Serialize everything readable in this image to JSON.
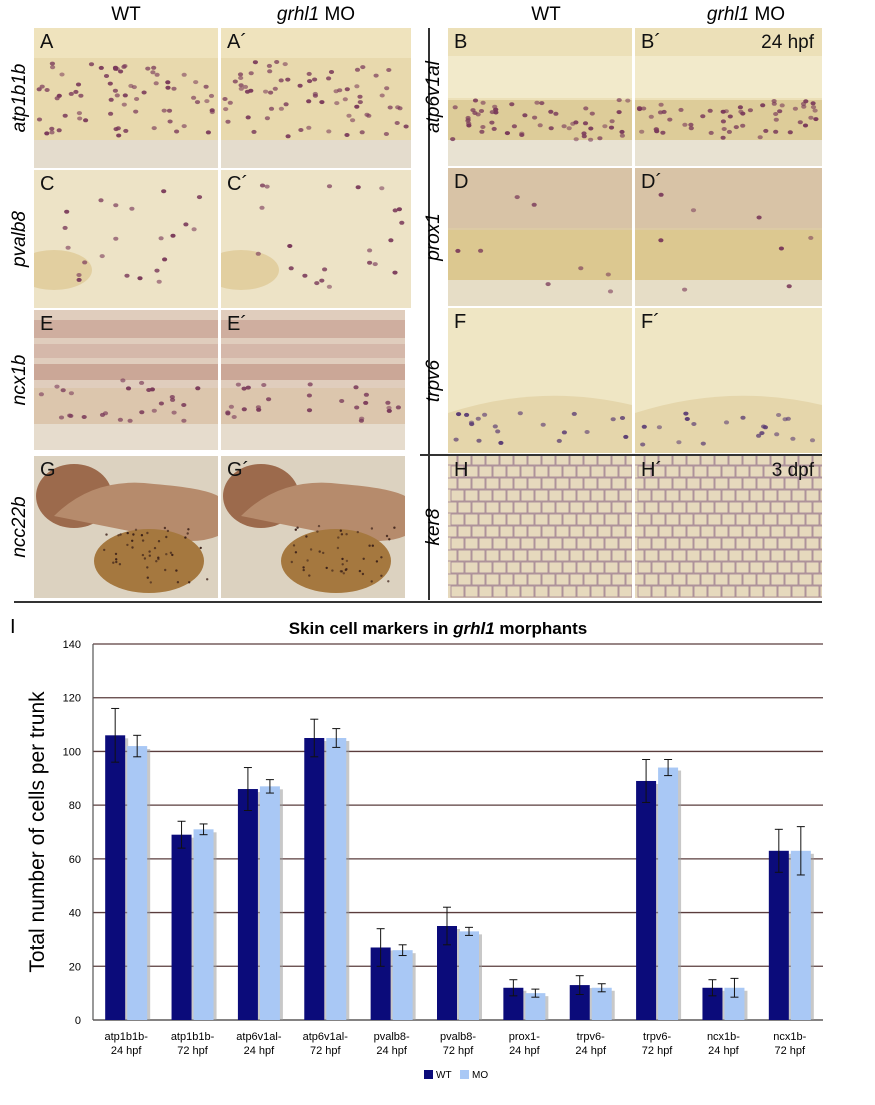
{
  "headers": {
    "left_wt": "WT",
    "left_mo_gene": "grhl1",
    "left_mo_suffix": " MO",
    "right_wt": "WT",
    "right_mo_gene": "grhl1",
    "right_mo_suffix": " MO"
  },
  "panels": [
    {
      "label": "A",
      "gene": "atp1b1b"
    },
    {
      "label": "A´"
    },
    {
      "label": "B",
      "gene": "atp6v1al"
    },
    {
      "label": "B´",
      "stage": "24 hpf"
    },
    {
      "label": "C",
      "gene": "pvalb8"
    },
    {
      "label": "C´"
    },
    {
      "label": "D",
      "gene": "prox1"
    },
    {
      "label": "D´"
    },
    {
      "label": "E",
      "gene": "ncx1b"
    },
    {
      "label": "E´"
    },
    {
      "label": "F",
      "gene": "trpv6"
    },
    {
      "label": "F´"
    },
    {
      "label": "G",
      "gene": "ncc22b"
    },
    {
      "label": "G´"
    },
    {
      "label": "H",
      "gene": "ker8"
    },
    {
      "label": "H´",
      "stage": "3 dpf"
    }
  ],
  "chart_label": "I",
  "chart_data": {
    "type": "bar",
    "title_prefix": "Skin cell markers in ",
    "title_gene": "grhl1",
    "title_suffix": " morphants",
    "ylabel": "Total number of cells per trunk",
    "ylim": [
      0,
      140
    ],
    "yticks": [
      "0",
      "20",
      "40",
      "60",
      "80",
      "100",
      "120",
      "140"
    ],
    "grid": true,
    "legend_position": "bottom-center",
    "categories": [
      [
        "atp1b1b-",
        "24 hpf"
      ],
      [
        "atp1b1b-",
        "72 hpf"
      ],
      [
        "atp6v1al-",
        "24 hpf"
      ],
      [
        "atp6v1al-",
        "72 hpf"
      ],
      [
        "pvalb8-",
        "24 hpf"
      ],
      [
        "pvalb8-",
        "72 hpf"
      ],
      [
        "prox1-",
        "24 hpf"
      ],
      [
        "trpv6-",
        "24 hpf"
      ],
      [
        "trpv6-",
        "72 hpf"
      ],
      [
        "ncx1b-",
        "24 hpf"
      ],
      [
        "ncx1b-",
        "72 hpf"
      ]
    ],
    "series": [
      {
        "name": "WT",
        "color": "#0b0b7a",
        "values": [
          106,
          69,
          86,
          105,
          27,
          35,
          12,
          13,
          89,
          12,
          63
        ],
        "errors": [
          10,
          5,
          8,
          7,
          7,
          7,
          3,
          3.5,
          8,
          3,
          8
        ]
      },
      {
        "name": "MO",
        "color": "#a9c8f5",
        "values": [
          102,
          71,
          87,
          105,
          26,
          33,
          10,
          12,
          94,
          12,
          63
        ],
        "errors": [
          4,
          2,
          2.5,
          3.5,
          2,
          1.5,
          1.5,
          1.5,
          3,
          3.5,
          9
        ]
      }
    ]
  }
}
